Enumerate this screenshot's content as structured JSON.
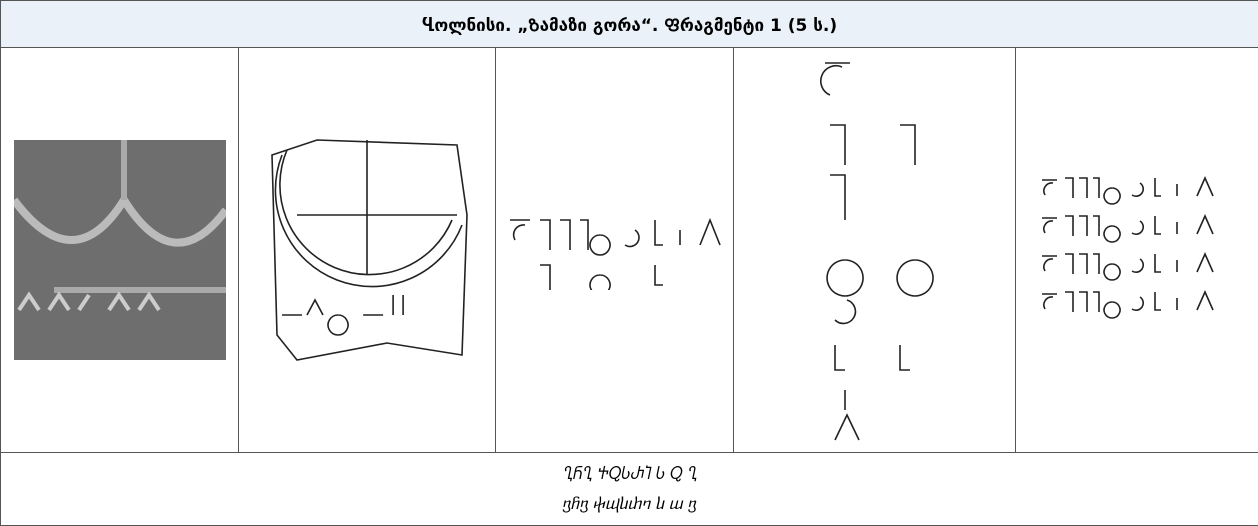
{
  "header": {
    "title": "Ⴁოლნისი. „Ზამაზი გორა“. Ფრაგმენტი 1 (5 ს.)"
  },
  "footer": {
    "asomtavruli": "ႢႬႢ ႵႭႱႰႨ Ⴑ Ⴍ Ⴂ",
    "nuskhuri": "ⴂⴌⴂ ⴕⴓⴑⴐⴈ ⴑ ⴍ ⴂ"
  }
}
